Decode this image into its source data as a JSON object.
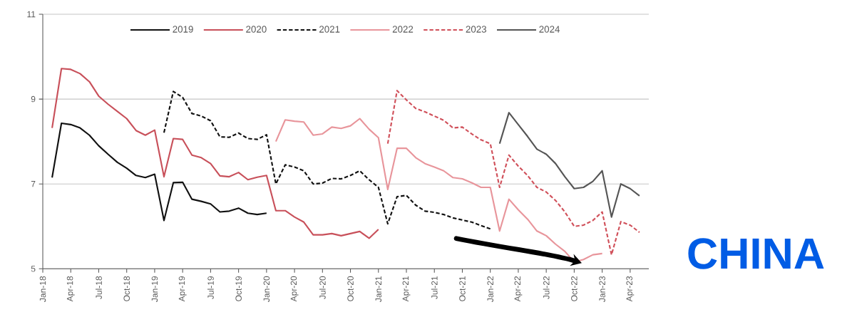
{
  "chart_data": {
    "type": "line",
    "xlim": [
      "2018-01",
      "2023-06"
    ],
    "xticks": [
      {
        "value": "2018-01",
        "label": "Jan-18"
      },
      {
        "value": "2018-04",
        "label": "Apr-18"
      },
      {
        "value": "2018-07",
        "label": "Jul-18"
      },
      {
        "value": "2018-10",
        "label": "Oct-18"
      },
      {
        "value": "2019-01",
        "label": "Jan-19"
      },
      {
        "value": "2019-04",
        "label": "Apr-19"
      },
      {
        "value": "2019-07",
        "label": "Jul-19"
      },
      {
        "value": "2019-10",
        "label": "Oct-19"
      },
      {
        "value": "2020-01",
        "label": "Jan-20"
      },
      {
        "value": "2020-04",
        "label": "Apr-20"
      },
      {
        "value": "2020-07",
        "label": "Jul-20"
      },
      {
        "value": "2020-10",
        "label": "Oct-20"
      },
      {
        "value": "2021-01",
        "label": "Jan-21"
      },
      {
        "value": "2021-04",
        "label": "Apr-21"
      },
      {
        "value": "2021-07",
        "label": "Jul-21"
      },
      {
        "value": "2021-10",
        "label": "Oct-21"
      },
      {
        "value": "2022-01",
        "label": "Jan-22"
      },
      {
        "value": "2022-04",
        "label": "Apr-22"
      },
      {
        "value": "2022-07",
        "label": "Jul-22"
      },
      {
        "value": "2022-10",
        "label": "Oct-22"
      },
      {
        "value": "2023-01",
        "label": "Jan-23"
      },
      {
        "value": "2023-04",
        "label": "Apr-23"
      }
    ],
    "ylim": [
      5,
      11
    ],
    "yticks": [
      5,
      7,
      9,
      11
    ],
    "grid": "y",
    "legend": "top",
    "annotations": [
      "CHINA"
    ],
    "series": [
      {
        "name": "2019",
        "color": "#111111",
        "line_style": "solid",
        "x": [
          "2018-02",
          "2018-03",
          "2018-04",
          "2018-05",
          "2018-06",
          "2018-07",
          "2018-08",
          "2018-09",
          "2018-10",
          "2018-11",
          "2018-12",
          "2019-01",
          "2019-02",
          "2019-03",
          "2019-04",
          "2019-05",
          "2019-06",
          "2019-07",
          "2019-08",
          "2019-09",
          "2019-10",
          "2019-11",
          "2019-12",
          "2020-01"
        ],
        "values": [
          7.15,
          8.43,
          8.4,
          8.32,
          8.15,
          7.9,
          7.7,
          7.51,
          7.37,
          7.2,
          7.15,
          7.23,
          6.14,
          7.03,
          7.04,
          6.64,
          6.59,
          6.53,
          6.34,
          6.36,
          6.43,
          6.31,
          6.28,
          6.31
        ]
      },
      {
        "name": "2020",
        "color": "#c8505a",
        "line_style": "solid",
        "x": [
          "2018-02",
          "2018-03",
          "2018-04",
          "2018-05",
          "2018-06",
          "2018-07",
          "2018-08",
          "2018-09",
          "2018-10",
          "2018-11",
          "2018-12",
          "2019-01",
          "2019-02",
          "2019-03",
          "2019-04",
          "2019-05",
          "2019-06",
          "2019-07",
          "2019-08",
          "2019-09",
          "2019-10",
          "2019-11",
          "2019-12",
          "2020-01",
          "2020-02",
          "2020-03",
          "2020-04",
          "2020-05",
          "2020-06",
          "2020-07",
          "2020-08",
          "2020-09",
          "2020-10",
          "2020-11",
          "2020-12",
          "2021-01"
        ],
        "values": [
          8.32,
          9.72,
          9.7,
          9.6,
          9.41,
          9.07,
          8.88,
          8.71,
          8.54,
          8.26,
          8.15,
          8.27,
          7.17,
          8.07,
          8.05,
          7.68,
          7.62,
          7.48,
          7.19,
          7.17,
          7.27,
          7.1,
          7.16,
          7.2,
          6.37,
          6.37,
          6.22,
          6.1,
          5.8,
          5.8,
          5.83,
          5.78,
          5.83,
          5.88,
          5.72,
          5.93
        ]
      },
      {
        "name": "2021",
        "color": "#111111",
        "line_style": "dashed",
        "x": [
          "2019-02",
          "2019-03",
          "2019-04",
          "2019-05",
          "2019-06",
          "2019-07",
          "2019-08",
          "2019-09",
          "2019-10",
          "2019-11",
          "2019-12",
          "2020-01",
          "2020-02",
          "2020-03",
          "2020-04",
          "2020-05",
          "2020-06",
          "2020-07",
          "2020-08",
          "2020-09",
          "2020-10",
          "2020-11",
          "2020-12",
          "2021-01",
          "2021-02",
          "2021-03",
          "2021-04",
          "2021-05",
          "2021-06",
          "2021-07",
          "2021-08",
          "2021-09",
          "2021-10",
          "2021-11",
          "2021-12",
          "2022-01"
        ],
        "values": [
          8.21,
          9.18,
          9.04,
          8.66,
          8.6,
          8.49,
          8.11,
          8.1,
          8.2,
          8.07,
          8.05,
          8.16,
          7.0,
          7.45,
          7.4,
          7.31,
          7.0,
          7.02,
          7.13,
          7.12,
          7.2,
          7.31,
          7.1,
          6.92,
          6.06,
          6.7,
          6.73,
          6.5,
          6.36,
          6.33,
          6.28,
          6.2,
          6.15,
          6.1,
          6.02,
          5.94
        ]
      },
      {
        "name": "2022",
        "color": "#e8959b",
        "line_style": "solid",
        "x": [
          "2020-02",
          "2020-03",
          "2020-04",
          "2020-05",
          "2020-06",
          "2020-07",
          "2020-08",
          "2020-09",
          "2020-10",
          "2020-11",
          "2020-12",
          "2021-01",
          "2021-02",
          "2021-03",
          "2021-04",
          "2021-05",
          "2021-06",
          "2021-07",
          "2021-08",
          "2021-09",
          "2021-10",
          "2021-11",
          "2021-12",
          "2022-01",
          "2022-02",
          "2022-03",
          "2022-04",
          "2022-05",
          "2022-06",
          "2022-07",
          "2022-08",
          "2022-09",
          "2022-10",
          "2022-11",
          "2022-12",
          "2023-01"
        ],
        "values": [
          8.0,
          8.51,
          8.48,
          8.46,
          8.15,
          8.18,
          8.34,
          8.31,
          8.37,
          8.54,
          8.29,
          8.09,
          6.87,
          7.84,
          7.84,
          7.62,
          7.48,
          7.4,
          7.31,
          7.15,
          7.12,
          7.03,
          6.92,
          6.92,
          5.89,
          6.64,
          6.39,
          6.17,
          5.89,
          5.78,
          5.58,
          5.41,
          5.16,
          5.22,
          5.33,
          5.36
        ]
      },
      {
        "name": "2023",
        "color": "#d0505a",
        "line_style": "dashed",
        "x": [
          "2021-02",
          "2021-03",
          "2021-04",
          "2021-05",
          "2021-06",
          "2021-07",
          "2021-08",
          "2021-09",
          "2021-10",
          "2021-11",
          "2021-12",
          "2022-01",
          "2022-02",
          "2022-03",
          "2022-04",
          "2022-05",
          "2022-06",
          "2022-07",
          "2022-08",
          "2022-09",
          "2022-10",
          "2022-11",
          "2022-12",
          "2023-01",
          "2023-02",
          "2023-03",
          "2023-04",
          "2023-05"
        ],
        "values": [
          7.95,
          9.2,
          8.98,
          8.78,
          8.7,
          8.6,
          8.5,
          8.32,
          8.34,
          8.18,
          8.04,
          7.95,
          6.92,
          7.68,
          7.42,
          7.2,
          6.92,
          6.81,
          6.61,
          6.34,
          6.0,
          6.03,
          6.14,
          6.34,
          5.33,
          6.11,
          6.03,
          5.86
        ]
      },
      {
        "name": "2024",
        "color": "#555555",
        "line_style": "solid",
        "x": [
          "2022-02",
          "2022-03",
          "2022-04",
          "2022-05",
          "2022-06",
          "2022-07",
          "2022-08",
          "2022-09",
          "2022-10",
          "2022-11",
          "2022-12",
          "2023-01",
          "2023-02",
          "2023-03",
          "2023-04",
          "2023-05"
        ],
        "values": [
          7.95,
          8.68,
          8.4,
          8.12,
          7.82,
          7.7,
          7.48,
          7.17,
          6.89,
          6.92,
          7.06,
          7.31,
          6.22,
          7.0,
          6.89,
          6.72
        ]
      }
    ]
  }
}
